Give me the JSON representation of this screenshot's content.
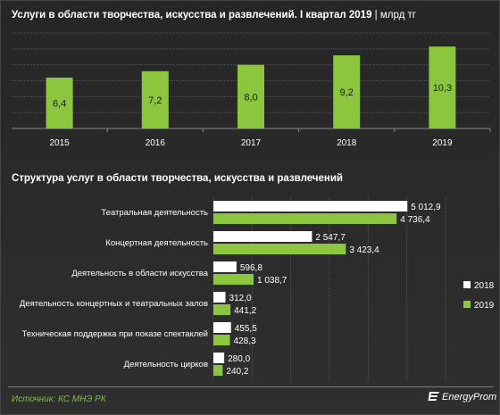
{
  "chart1_title": {
    "main": "Услуги в области творчества,  искусства  и развлечений. I квартал  2019",
    "unit": " | млрд тг"
  },
  "chart2_title": "Структура  услуг в области творчества,  искусства  и развлечений",
  "source": "Источник: КС МНЭ РК",
  "logo_text": "EnergyProm",
  "colors": {
    "green": "#8cc63f",
    "white": "#ffffff",
    "grid": "#555555",
    "text": "#ffffff"
  },
  "chart_data": [
    {
      "type": "bar",
      "title": "Услуги в области творчества,  искусства  и развлечений. I квартал  2019",
      "unit": "млрд тг",
      "categories": [
        "2015",
        "2016",
        "2017",
        "2018",
        "2019"
      ],
      "values": [
        6.4,
        7.2,
        8.0,
        9.2,
        10.3
      ],
      "value_labels": [
        "6,4",
        "7,2",
        "8,0",
        "9,2",
        "10,3"
      ],
      "ylim": [
        0,
        12
      ],
      "grid": true
    },
    {
      "type": "bar",
      "orientation": "horizontal",
      "title": "Структура  услуг в области творчества,  искусства  и развлечений",
      "categories": [
        "Театральная деятельность",
        "Концертная деятельность",
        "Деятельность в области искусства",
        "Деятельность концертных и театральных залов",
        "Техническая поддержка при показе спектаклей",
        "Деятельность цирков"
      ],
      "series": [
        {
          "name": "2018",
          "color": "#ffffff",
          "values": [
            5012.9,
            2547.7,
            596.8,
            312.0,
            455.5,
            280.0
          ],
          "labels": [
            "5 012,9",
            "2 547,7",
            "596,8",
            "312,0",
            "455,5",
            "280,0"
          ]
        },
        {
          "name": "2019",
          "color": "#8cc63f",
          "values": [
            4736.4,
            3423.4,
            1038.7,
            441.2,
            428.3,
            240.2
          ],
          "labels": [
            "4 736,4",
            "3 423,4",
            "1 038,7",
            "441,2",
            "428,3",
            "240,2"
          ]
        }
      ],
      "xlim": [
        0,
        6000
      ],
      "legend": "right",
      "grid": true
    }
  ]
}
